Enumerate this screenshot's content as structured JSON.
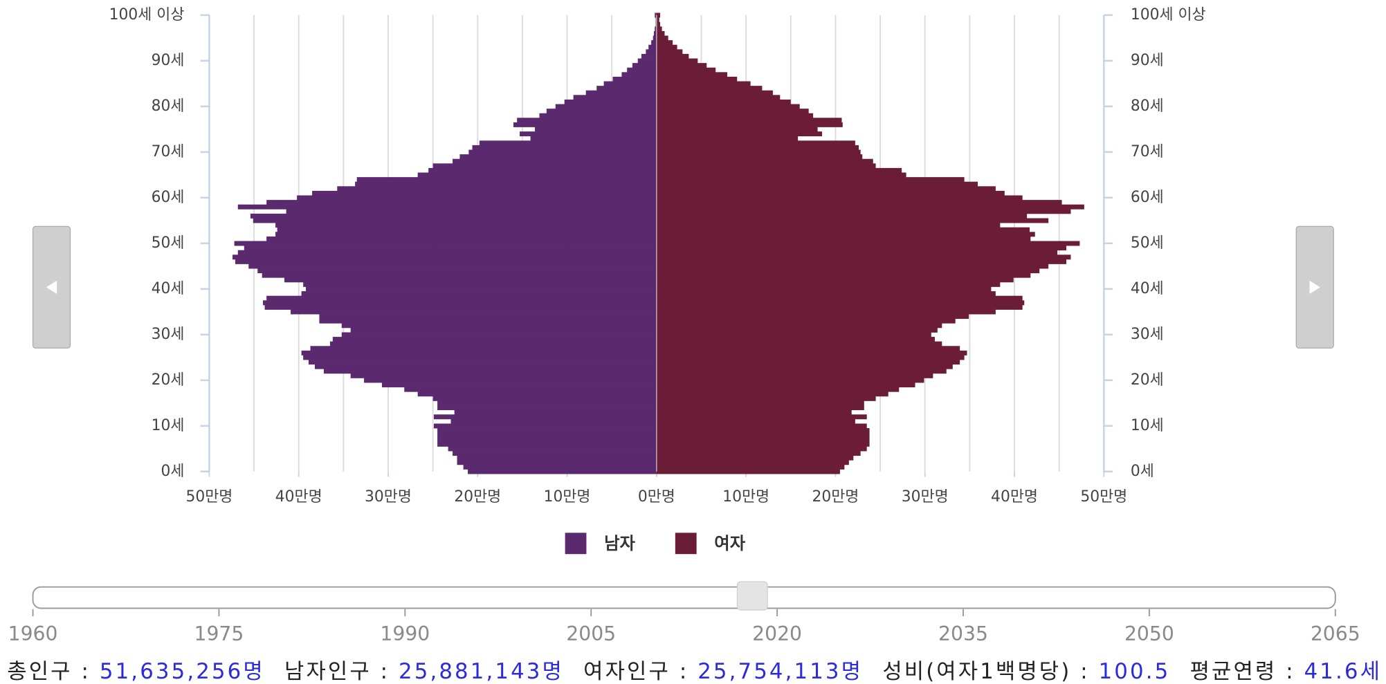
{
  "chart_data": {
    "type": "pyramid",
    "categories": [
      "0세",
      null,
      null,
      null,
      null,
      null,
      null,
      null,
      null,
      null,
      "10세",
      null,
      null,
      null,
      null,
      null,
      null,
      null,
      null,
      null,
      "20세",
      null,
      null,
      null,
      null,
      null,
      null,
      null,
      null,
      null,
      "30세",
      null,
      null,
      null,
      null,
      null,
      null,
      null,
      null,
      null,
      "40세",
      null,
      null,
      null,
      null,
      null,
      null,
      null,
      null,
      null,
      "50세",
      null,
      null,
      null,
      null,
      null,
      null,
      null,
      null,
      null,
      "60세",
      null,
      null,
      null,
      null,
      null,
      null,
      null,
      null,
      null,
      "70세",
      null,
      null,
      null,
      null,
      null,
      null,
      null,
      null,
      null,
      "80세",
      null,
      null,
      null,
      null,
      null,
      null,
      null,
      null,
      null,
      "90세",
      null,
      null,
      null,
      null,
      null,
      null,
      null,
      null,
      null,
      "100세 이상"
    ],
    "series": [
      {
        "name": "남자",
        "color": "#5b2a6e",
        "side": "left",
        "values": [
          21.1,
          21.6,
          22.3,
          22.3,
          22.8,
          23.3,
          24.5,
          24.5,
          24.5,
          24.5,
          24.9,
          23,
          24.9,
          22.6,
          24.5,
          24.5,
          25,
          26.7,
          28.2,
          30.7,
          32.7,
          34.2,
          37.2,
          38.2,
          38.9,
          39.5,
          39.7,
          38.7,
          36.5,
          36.2,
          35.2,
          34.2,
          35.2,
          37.7,
          37.7,
          40.9,
          43.8,
          44,
          43.6,
          39.7,
          39.2,
          39.5,
          41.6,
          44.1,
          44.6,
          45.6,
          47.1,
          47.4,
          46.8,
          46.1,
          47.2,
          43.6,
          42.6,
          42.4,
          42.6,
          45.1,
          45.4,
          41.4,
          46.8,
          43.6,
          40.2,
          38.5,
          35.7,
          33.7,
          33.5,
          26.7,
          25.5,
          25,
          22.8,
          22,
          21,
          20.6,
          19.8,
          14.1,
          15.3,
          13.6,
          16,
          15.6,
          13.1,
          12.3,
          11.3,
          10.3,
          9.3,
          7.9,
          6.7,
          5.9,
          4.9,
          3.9,
          3.3,
          2.7,
          2.1,
          1.7,
          1.2,
          0.9,
          0.6,
          0.4,
          0.3,
          0.2,
          0.1,
          0.1,
          0.2
        ]
      },
      {
        "name": "여자",
        "color": "#6b1d38",
        "side": "right",
        "values": [
          20.5,
          21,
          21.5,
          22,
          22.8,
          23.5,
          23.8,
          23.8,
          23.8,
          23.8,
          23.5,
          22.2,
          23.5,
          21.8,
          23.2,
          23.2,
          24.5,
          25.9,
          27.1,
          28.9,
          29.9,
          30.9,
          32.4,
          33.1,
          33.9,
          34.4,
          34.7,
          33.9,
          31.9,
          31.1,
          30.7,
          31.4,
          31.9,
          33.4,
          34.9,
          37.9,
          40.9,
          41.1,
          40.9,
          37.9,
          37.4,
          38.4,
          39.9,
          41.8,
          42.8,
          43.8,
          45.8,
          46.3,
          44.8,
          45.8,
          47.3,
          41.8,
          42.3,
          41.7,
          38.4,
          43.8,
          41.4,
          46.3,
          47.8,
          45.3,
          40.9,
          38.9,
          37.9,
          35.9,
          34.4,
          27.9,
          27.4,
          24.5,
          24.2,
          23,
          22.8,
          22.6,
          22.2,
          15.8,
          18.5,
          18,
          20.8,
          20.7,
          17.5,
          17,
          16,
          15,
          13.8,
          13,
          11.8,
          10.5,
          9,
          7.9,
          6.6,
          5.6,
          4.6,
          3.6,
          2.9,
          2.3,
          1.8,
          1.3,
          0.9,
          0.6,
          0.4,
          0.3,
          0.4
        ]
      }
    ],
    "xlim": [
      -50,
      50
    ],
    "xticks": [
      {
        "value": -50,
        "label": "50만명"
      },
      {
        "value": -40,
        "label": "40만명"
      },
      {
        "value": -30,
        "label": "30만명"
      },
      {
        "value": -20,
        "label": "20만명"
      },
      {
        "value": -10,
        "label": "10만명"
      },
      {
        "value": 0,
        "label": "0만명"
      },
      {
        "value": 10,
        "label": "10만명"
      },
      {
        "value": 20,
        "label": "20만명"
      },
      {
        "value": 30,
        "label": "30만명"
      },
      {
        "value": 40,
        "label": "40만명"
      },
      {
        "value": 50,
        "label": "50만명"
      }
    ],
    "grid_lines": [
      -45,
      -40,
      -35,
      -30,
      -25,
      -20,
      -15,
      -10,
      -5,
      5,
      10,
      15,
      20,
      25,
      30,
      35,
      40,
      45
    ],
    "legend": "bottom"
  },
  "slider": {
    "min": 1960,
    "max": 2065,
    "value": 2018,
    "ticks": [
      1960,
      1975,
      1990,
      2005,
      2020,
      2035,
      2050,
      2065
    ]
  },
  "stats": [
    {
      "label": "총인구 : ",
      "value": "51,635,256명"
    },
    {
      "label": "남자인구 : ",
      "value": "25,881,143명"
    },
    {
      "label": "여자인구 : ",
      "value": "25,754,113명"
    },
    {
      "label": "성비(여자1백명당) : ",
      "value": "100.5"
    },
    {
      "label": "평균연령 : ",
      "value": "41.6세"
    }
  ]
}
